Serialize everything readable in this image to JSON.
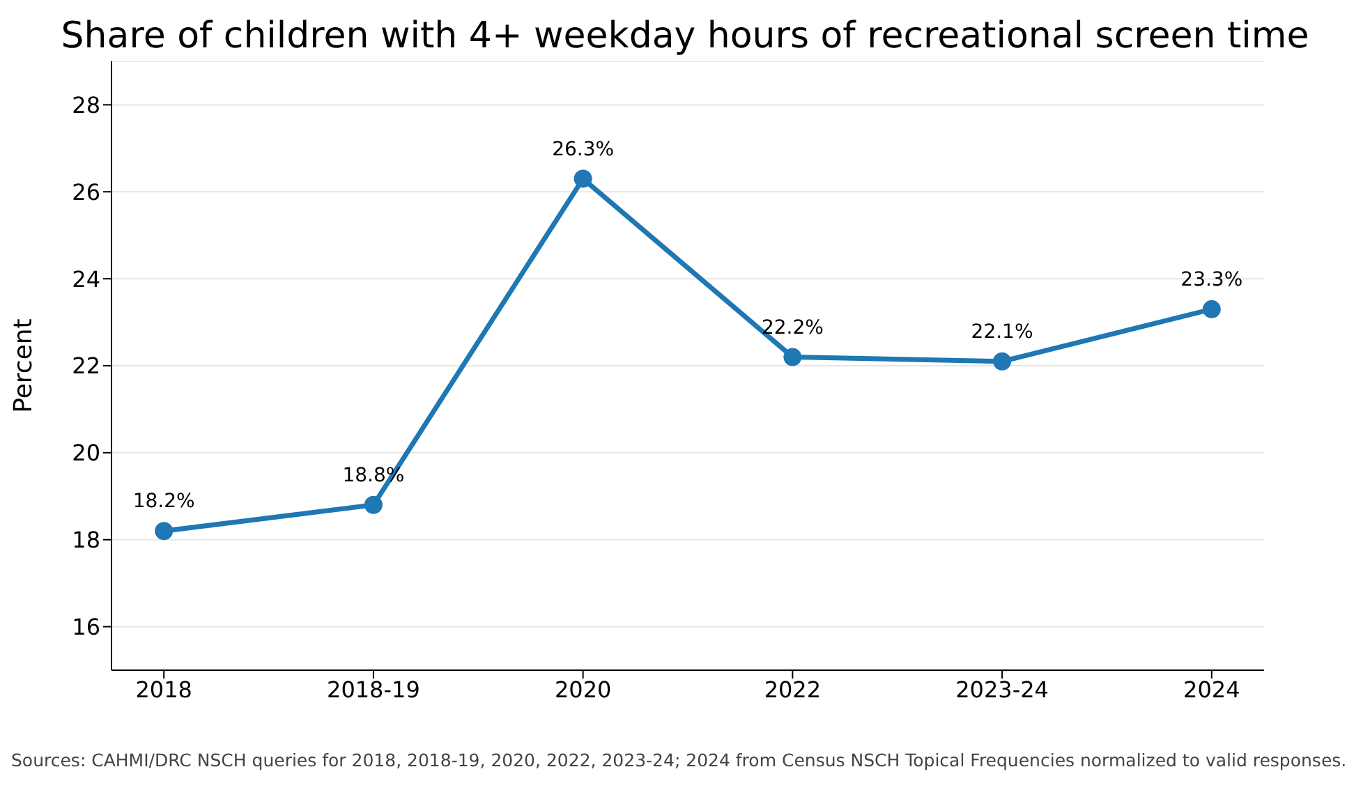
{
  "chart_data": {
    "type": "line",
    "title": "Share of children with 4+ weekday hours of recreational screen time",
    "ylabel": "Percent",
    "categories": [
      "2018",
      "2018-19",
      "2020",
      "2022",
      "2023-24",
      "2024"
    ],
    "series": [
      {
        "color": "#1f77b4",
        "values": [
          18.2,
          18.8,
          26.3,
          22.2,
          22.1,
          23.3
        ],
        "value_labels": [
          "18.2%",
          "18.8%",
          "26.3%",
          "22.2%",
          "22.1%",
          "23.3%"
        ]
      }
    ],
    "ylim": [
      15,
      29
    ],
    "yticks": [
      16,
      18,
      20,
      22,
      24,
      26,
      28
    ],
    "grid": "y",
    "legend": false,
    "marker": "circle",
    "line_style": "solid",
    "annotations": [
      "Sources: CAHMI/DRC NSCH queries for 2018, 2018-19, 2020, 2022, 2023-24; 2024 from Census NSCH Topical Frequencies normalized to valid responses."
    ]
  }
}
